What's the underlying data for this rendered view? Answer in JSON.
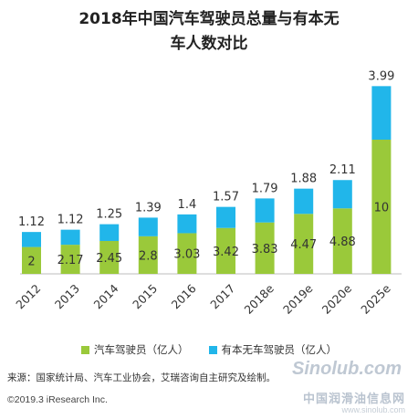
{
  "chart_data": {
    "type": "bar",
    "stacked": true,
    "title_lines": [
      "2018年中国汽车驾驶员总量与有本无",
      "车人数对比"
    ],
    "categories": [
      "2012",
      "2013",
      "2014",
      "2015",
      "2016",
      "2017",
      "2018e",
      "2019e",
      "2020e",
      "2025e"
    ],
    "series": [
      {
        "name": "汽车驾驶员（亿人）",
        "color": "#9ac93a",
        "values": [
          2,
          2.17,
          2.45,
          2.8,
          3.03,
          3.42,
          3.83,
          4.47,
          4.88,
          10
        ]
      },
      {
        "name": "有本无车驾驶员（亿人）",
        "color": "#21b6ea",
        "values": [
          1.12,
          1.12,
          1.25,
          1.39,
          1.4,
          1.57,
          1.79,
          1.88,
          2.11,
          3.99
        ]
      }
    ],
    "legend_position": "bottom",
    "grid": false
  },
  "source": "来源：国家统计局、汽车工业协会，艾瑞咨询自主研究及绘制。",
  "copyright": "©2019.3 iResearch Inc.",
  "watermark": {
    "logo": "Sinolub.com",
    "cn": "中国润滑油信息网",
    "url": "www.sinolub.com"
  }
}
